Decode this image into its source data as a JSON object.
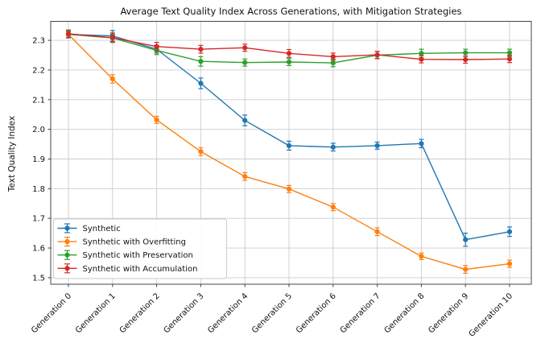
{
  "figure": {
    "title": "Average Text Quality Index Across Generations, with Mitigation Strategies",
    "ylabel": "Text Quality Index"
  },
  "chart_data": {
    "type": "line",
    "title": "Average Text Quality Index Across Generations, with Mitigation Strategies",
    "xlabel": "",
    "ylabel": "Text Quality Index",
    "categories": [
      "Generation 0",
      "Generation 1",
      "Generation 2",
      "Generation 3",
      "Generation 4",
      "Generation 5",
      "Generation 6",
      "Generation 7",
      "Generation 8",
      "Generation 9",
      "Generation 10"
    ],
    "y_ticks": [
      1.5,
      1.6,
      1.7,
      1.8,
      1.9,
      2.0,
      2.1,
      2.2,
      2.3
    ],
    "ylim": [
      1.478,
      2.364
    ],
    "grid": true,
    "grid_color": "#cccccc",
    "legend_position": "lower-left",
    "marker": "circle-with-error-bars",
    "series": [
      {
        "name": "Synthetic",
        "color": "#1f77b4",
        "values": [
          2.32,
          2.315,
          2.27,
          2.155,
          2.03,
          1.945,
          1.94,
          1.945,
          1.952,
          1.628,
          1.655
        ],
        "yerr": [
          0.012,
          0.018,
          0.013,
          0.018,
          0.018,
          0.015,
          0.013,
          0.012,
          0.014,
          0.022,
          0.016
        ]
      },
      {
        "name": "Synthetic with Overfitting",
        "color": "#ff7f0e",
        "values": [
          2.32,
          2.17,
          2.032,
          1.925,
          1.841,
          1.799,
          1.738,
          1.655,
          1.572,
          1.528,
          1.547
        ],
        "yerr": [
          0.01,
          0.014,
          0.012,
          0.013,
          0.013,
          0.012,
          0.012,
          0.013,
          0.011,
          0.013,
          0.012
        ]
      },
      {
        "name": "Synthetic with Preservation",
        "color": "#2ca02c",
        "values": [
          2.32,
          2.308,
          2.266,
          2.229,
          2.225,
          2.227,
          2.224,
          2.25,
          2.256,
          2.258,
          2.258
        ],
        "yerr": [
          0.01,
          0.013,
          0.014,
          0.016,
          0.012,
          0.012,
          0.013,
          0.012,
          0.014,
          0.012,
          0.012
        ]
      },
      {
        "name": "Synthetic with Accumulation",
        "color": "#d62728",
        "values": [
          2.322,
          2.309,
          2.279,
          2.27,
          2.275,
          2.256,
          2.245,
          2.251,
          2.236,
          2.235,
          2.237
        ],
        "yerr": [
          0.013,
          0.016,
          0.014,
          0.013,
          0.012,
          0.013,
          0.012,
          0.012,
          0.012,
          0.012,
          0.012
        ]
      }
    ]
  }
}
